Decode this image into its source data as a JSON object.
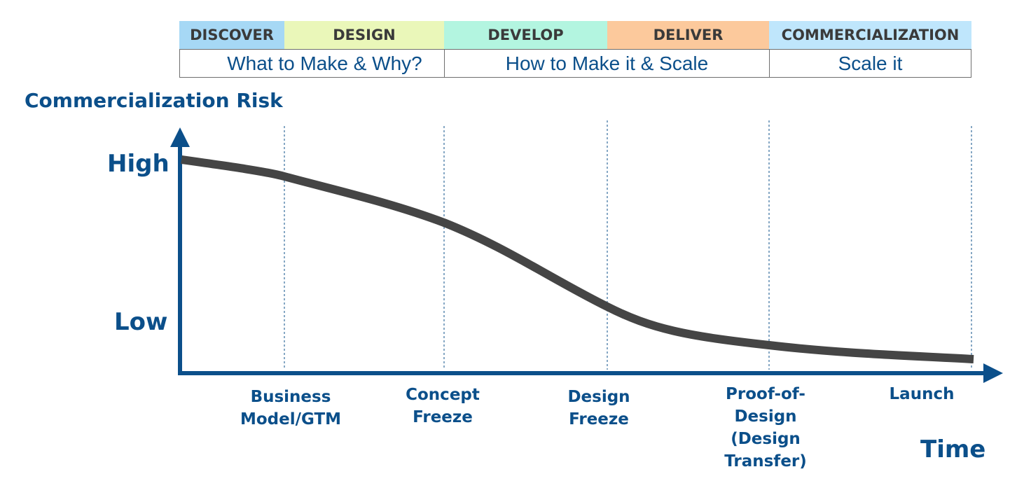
{
  "phases": [
    {
      "label": "DISCOVER",
      "color": "#a6d8f5"
    },
    {
      "label": "DESIGN",
      "color": "#eaf7b9"
    },
    {
      "label": "DEVELOP",
      "color": "#b3f5e0"
    },
    {
      "label": "DELIVER",
      "color": "#fcc99c"
    },
    {
      "label": "COMMERCIALIZATION",
      "color": "#bfe6fc"
    }
  ],
  "goals": [
    {
      "label": "What to Make & Why?"
    },
    {
      "label": "How to Make it & Scale"
    },
    {
      "label": "Scale it"
    }
  ],
  "chart": {
    "y_axis_title": "Commercialization Risk",
    "y_high_label": "High",
    "y_low_label": "Low",
    "x_axis_title": "Time",
    "milestones": [
      {
        "label": "Business\nModel/GTM"
      },
      {
        "label": "Concept\nFreeze"
      },
      {
        "label": "Design\nFreeze"
      },
      {
        "label": "Proof-of-\nDesign\n(Design\nTransfer)"
      },
      {
        "label": "Launch"
      }
    ],
    "colors": {
      "axis": "#0b4f8a",
      "curve": "#454545"
    }
  }
}
